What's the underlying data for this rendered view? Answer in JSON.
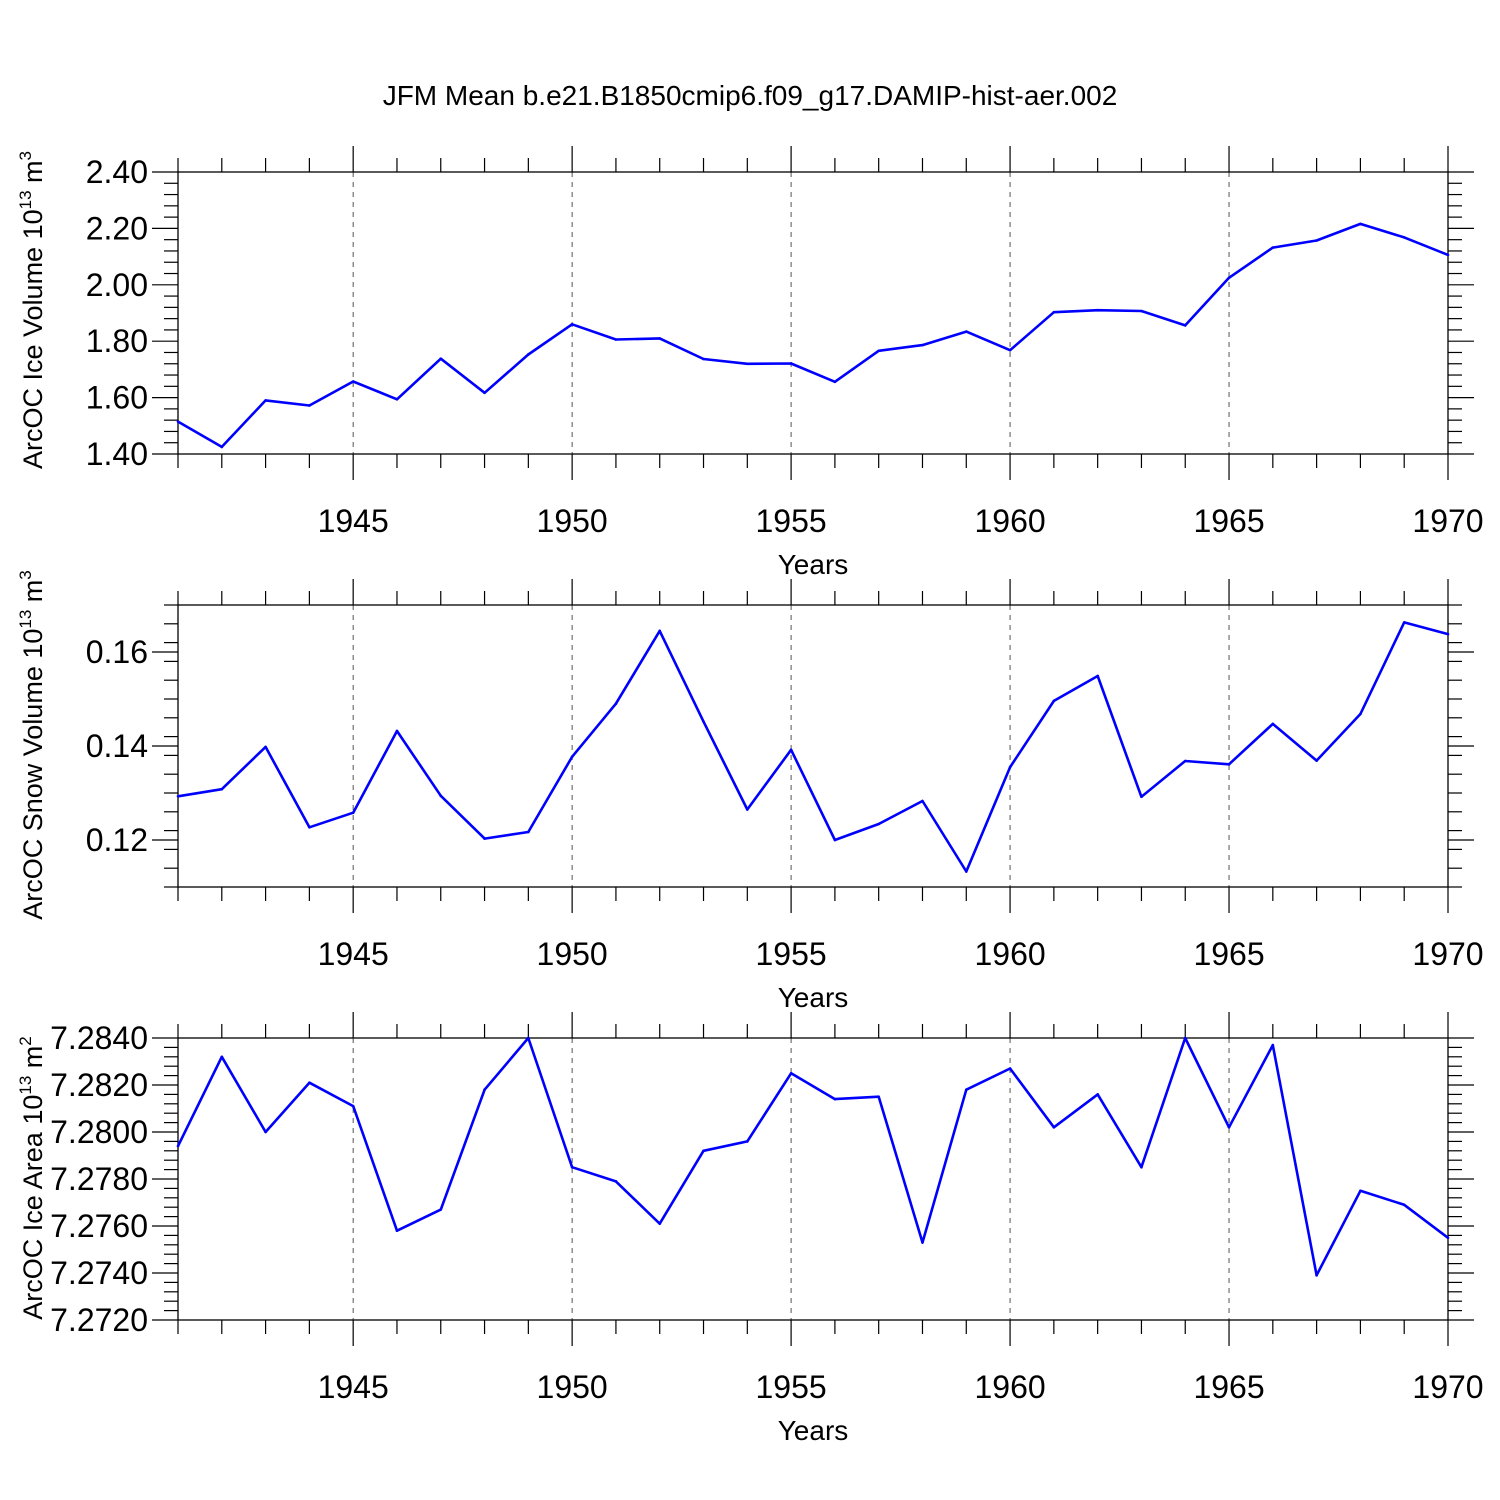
{
  "figure_title": "JFM Mean b.e21.B1850cmip6.f09_g17.DAMIP-hist-aer.002",
  "colors": {
    "line": "#0000ff",
    "axis": "#000000",
    "grid": "#555555"
  },
  "chart_data": [
    {
      "type": "line",
      "title": "JFM Mean b.e21.B1850cmip6.f09_g17.DAMIP-hist-aer.002",
      "xlabel": "Years",
      "ylabel": "ArcOC Ice Volume 10",
      "ylabel_sup": "13",
      "ylabel_unit": " m",
      "ylabel_unit_sup": "3",
      "xlim": [
        1941,
        1970
      ],
      "ylim": [
        1.4,
        2.4
      ],
      "yticks": [
        1.4,
        1.6,
        1.8,
        2.0,
        2.2,
        2.4
      ],
      "ytick_labels": [
        "1.40",
        "1.60",
        "1.80",
        "2.00",
        "2.20",
        "2.40"
      ],
      "xticks": [
        1945,
        1950,
        1955,
        1960,
        1965,
        1970
      ],
      "xtick_labels": [
        "1945",
        "1950",
        "1955",
        "1960",
        "1965",
        "1970"
      ],
      "x_gridlines": [
        1945,
        1950,
        1955,
        1960,
        1965
      ],
      "x": [
        1941,
        1942,
        1943,
        1944,
        1945,
        1946,
        1947,
        1948,
        1949,
        1950,
        1951,
        1952,
        1953,
        1954,
        1955,
        1956,
        1957,
        1958,
        1959,
        1960,
        1961,
        1962,
        1963,
        1964,
        1965,
        1966,
        1967,
        1968,
        1969,
        1970
      ],
      "y": [
        1.515,
        1.425,
        1.59,
        1.572,
        1.657,
        1.594,
        1.738,
        1.617,
        1.753,
        1.86,
        1.806,
        1.81,
        1.737,
        1.72,
        1.721,
        1.656,
        1.766,
        1.786,
        1.834,
        1.768,
        1.903,
        1.91,
        1.907,
        1.856,
        2.025,
        2.132,
        2.157,
        2.216,
        2.168,
        2.106
      ]
    },
    {
      "type": "line",
      "xlabel": "Years",
      "ylabel": "ArcOC Snow Volume 10",
      "ylabel_sup": "13",
      "ylabel_unit": " m",
      "ylabel_unit_sup": "3",
      "xlim": [
        1941,
        1970
      ],
      "ylim": [
        0.11,
        0.17
      ],
      "yticks": [
        0.12,
        0.14,
        0.16
      ],
      "ytick_labels": [
        "0.12",
        "0.14",
        "0.16"
      ],
      "xticks": [
        1945,
        1950,
        1955,
        1960,
        1965,
        1970
      ],
      "xtick_labels": [
        "1945",
        "1950",
        "1955",
        "1960",
        "1965",
        "1970"
      ],
      "x_gridlines": [
        1945,
        1950,
        1955,
        1960,
        1965
      ],
      "x": [
        1941,
        1942,
        1943,
        1944,
        1945,
        1946,
        1947,
        1948,
        1949,
        1950,
        1951,
        1952,
        1953,
        1954,
        1955,
        1956,
        1957,
        1958,
        1959,
        1960,
        1961,
        1962,
        1963,
        1964,
        1965,
        1966,
        1967,
        1968,
        1969,
        1970
      ],
      "y": [
        0.1293,
        0.1308,
        0.1398,
        0.1227,
        0.1258,
        0.1432,
        0.1294,
        0.1203,
        0.1217,
        0.1377,
        0.149,
        0.1645,
        0.1452,
        0.1265,
        0.1392,
        0.12,
        0.1234,
        0.1283,
        0.1133,
        0.1355,
        0.1496,
        0.1549,
        0.1292,
        0.1368,
        0.1361,
        0.1447,
        0.1369,
        0.1468,
        0.1663,
        0.1638
      ]
    },
    {
      "type": "line",
      "xlabel": "Years",
      "ylabel": "ArcOC Ice Area 10",
      "ylabel_sup": "13",
      "ylabel_unit": " m",
      "ylabel_unit_sup": "2",
      "xlim": [
        1941,
        1970
      ],
      "ylim": [
        7.272,
        7.284
      ],
      "yticks": [
        7.272,
        7.274,
        7.276,
        7.278,
        7.28,
        7.282,
        7.284
      ],
      "ytick_labels": [
        "7.2720",
        "7.2740",
        "7.2760",
        "7.2780",
        "7.2800",
        "7.2820",
        "7.2840"
      ],
      "xticks": [
        1945,
        1950,
        1955,
        1960,
        1965,
        1970
      ],
      "xtick_labels": [
        "1945",
        "1950",
        "1955",
        "1960",
        "1965",
        "1970"
      ],
      "x_gridlines": [
        1945,
        1950,
        1955,
        1960,
        1965
      ],
      "x": [
        1941,
        1942,
        1943,
        1944,
        1945,
        1946,
        1947,
        1948,
        1949,
        1950,
        1951,
        1952,
        1953,
        1954,
        1955,
        1956,
        1957,
        1958,
        1959,
        1960,
        1961,
        1962,
        1963,
        1964,
        1965,
        1966,
        1967,
        1968,
        1969,
        1970
      ],
      "y": [
        7.2794,
        7.2832,
        7.28,
        7.2821,
        7.2811,
        7.2758,
        7.2767,
        7.2818,
        7.284,
        7.2785,
        7.2779,
        7.2761,
        7.2792,
        7.2796,
        7.2825,
        7.2814,
        7.2815,
        7.2753,
        7.2818,
        7.2827,
        7.2802,
        7.2816,
        7.2785,
        7.284,
        7.2802,
        7.2837,
        7.2739,
        7.2775,
        7.2769,
        7.2755
      ]
    }
  ]
}
